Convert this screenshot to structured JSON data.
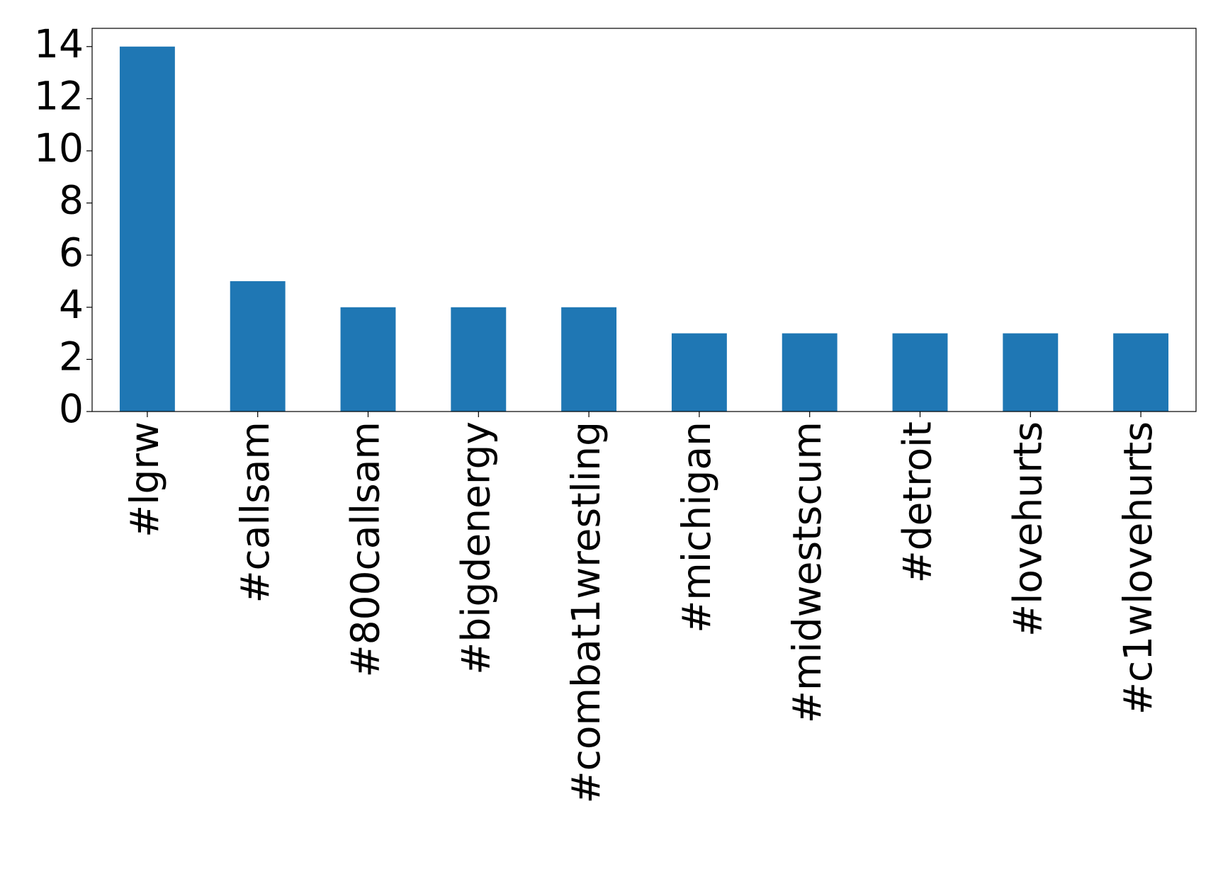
{
  "chart_data": {
    "type": "bar",
    "categories": [
      "#lgrw",
      "#callsam",
      "#800callsam",
      "#bigdenergy",
      "#combat1wrestling",
      "#michigan",
      "#midwestscum",
      "#detroit",
      "#lovehurts",
      "#c1wlovehurts"
    ],
    "values": [
      14,
      5,
      4,
      4,
      4,
      3,
      3,
      3,
      3,
      3
    ],
    "color": "#1f77b4",
    "ylim": [
      0,
      14.7
    ],
    "yticks": [
      0,
      2,
      4,
      6,
      8,
      10,
      12,
      14
    ],
    "grid": false
  }
}
